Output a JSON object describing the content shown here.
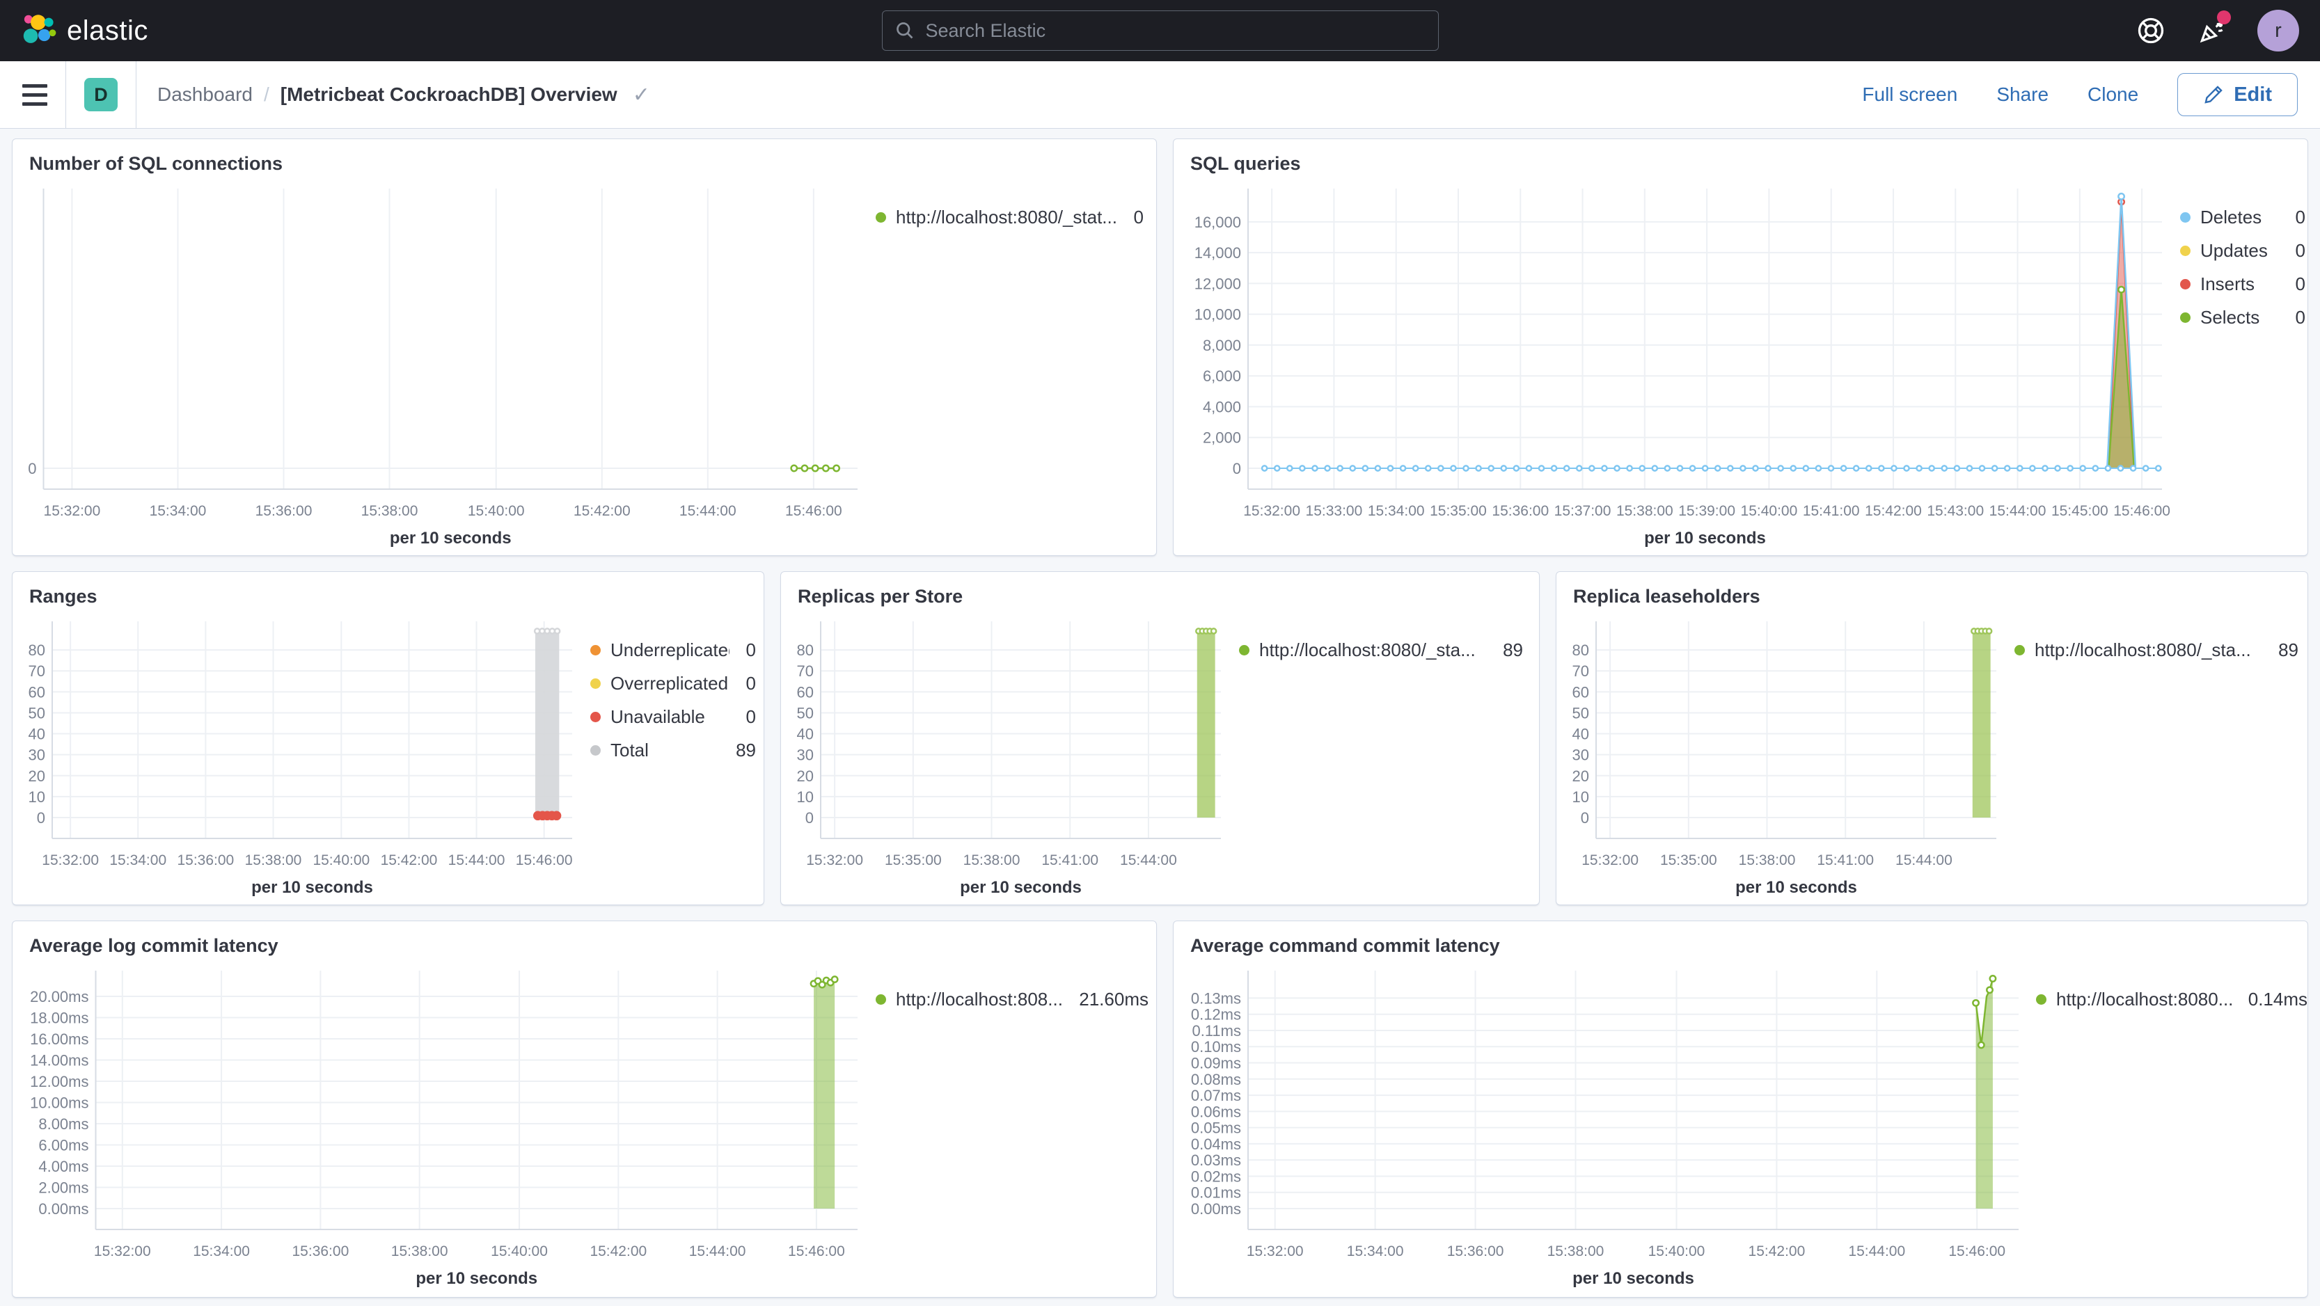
{
  "header": {
    "logo_text": "elastic",
    "search_placeholder": "Search Elastic",
    "avatar_initial": "r",
    "icons": {
      "search": "magnifier-search-icon",
      "help": "life-ring-help-icon",
      "news": "party-popper-news-icon",
      "notification_badge_color": "#e0366d"
    }
  },
  "toolbar": {
    "dashboard_badge": "D",
    "breadcrumb": {
      "root": "Dashboard",
      "separator": "/",
      "current": "[Metricbeat CockroachDB] Overview"
    },
    "actions": {
      "full_screen": "Full screen",
      "share": "Share",
      "clone": "Clone",
      "edit": "Edit"
    }
  },
  "colors": {
    "header_bg": "#1d1e24",
    "page_bg": "#f5f7fa",
    "panel_border": "#d3dae6",
    "accent_blue": "#2f6db4",
    "badge_teal": "#4dc3b2",
    "series_green": "#7eb631",
    "series_blue": "#7fc6f1",
    "series_yellow": "#f0d24c",
    "series_red": "#e2574c",
    "series_orange": "#ef9234",
    "series_gray": "#c6c8cb"
  },
  "chart_data": [
    {
      "title": "Number of SQL connections",
      "type": "line",
      "xlabel": "per 10 seconds",
      "ymax": 30,
      "y_ticks": [
        {
          "v": 0,
          "label": "0"
        }
      ],
      "x_grid": [
        0.035,
        0.165,
        0.295,
        0.425,
        0.556,
        0.686,
        0.816,
        0.946
      ],
      "x_ticks": [
        {
          "f": 0.035,
          "label": "15:32:00"
        },
        {
          "f": 0.165,
          "label": "15:34:00"
        },
        {
          "f": 0.295,
          "label": "15:36:00"
        },
        {
          "f": 0.425,
          "label": "15:38:00"
        },
        {
          "f": 0.556,
          "label": "15:40:00"
        },
        {
          "f": 0.686,
          "label": "15:42:00"
        },
        {
          "f": 0.816,
          "label": "15:44:00"
        },
        {
          "f": 0.946,
          "label": "15:46:00"
        }
      ],
      "series": [
        {
          "kind": "line",
          "color": "#7eb631",
          "points": [
            [
              0.922,
              0
            ],
            [
              0.935,
              0
            ],
            [
              0.948,
              0
            ],
            [
              0.961,
              0
            ],
            [
              0.974,
              0
            ]
          ],
          "marker_at": [
            0,
            1,
            2,
            3,
            4
          ]
        }
      ],
      "legend": [
        {
          "color": "#7eb631",
          "label": "http://localhost:8080/_stat...",
          "value": "0"
        }
      ]
    },
    {
      "title": "SQL queries",
      "type": "area",
      "xlabel": "per 10 seconds",
      "ymax": 17800,
      "y_ticks": [
        {
          "v": 0,
          "label": "0"
        },
        {
          "v": 2000,
          "label": "2,000"
        },
        {
          "v": 4000,
          "label": "4,000"
        },
        {
          "v": 6000,
          "label": "6,000"
        },
        {
          "v": 8000,
          "label": "8,000"
        },
        {
          "v": 10000,
          "label": "10,000"
        },
        {
          "v": 12000,
          "label": "12,000"
        },
        {
          "v": 14000,
          "label": "14,000"
        },
        {
          "v": 16000,
          "label": "16,000"
        }
      ],
      "x_grid": [
        0.026,
        0.094,
        0.162,
        0.23,
        0.298,
        0.366,
        0.434,
        0.502,
        0.57,
        0.638,
        0.706,
        0.774,
        0.842,
        0.91,
        0.978
      ],
      "x_ticks": [
        {
          "f": 0.026,
          "label": "15:32:00"
        },
        {
          "f": 0.094,
          "label": "15:33:00"
        },
        {
          "f": 0.162,
          "label": "15:34:00"
        },
        {
          "f": 0.23,
          "label": "15:35:00"
        },
        {
          "f": 0.298,
          "label": "15:36:00"
        },
        {
          "f": 0.366,
          "label": "15:37:00"
        },
        {
          "f": 0.434,
          "label": "15:38:00"
        },
        {
          "f": 0.502,
          "label": "15:39:00"
        },
        {
          "f": 0.57,
          "label": "15:40:00"
        },
        {
          "f": 0.638,
          "label": "15:41:00"
        },
        {
          "f": 0.706,
          "label": "15:42:00"
        },
        {
          "f": 0.774,
          "label": "15:43:00"
        },
        {
          "f": 0.842,
          "label": "15:44:00"
        },
        {
          "f": 0.91,
          "label": "15:45:00"
        },
        {
          "f": 0.978,
          "label": "15:46:00"
        }
      ],
      "series": [
        {
          "kind": "area",
          "color": "#e2574c",
          "points": [
            [
              0.941,
              0
            ],
            [
              0.9555,
              17300
            ],
            [
              0.97,
              0
            ]
          ],
          "marker_at": [
            1
          ]
        },
        {
          "kind": "area",
          "color": "#7eb631",
          "points": [
            [
              0.9415,
              0
            ],
            [
              0.9555,
              11600
            ],
            [
              0.9695,
              0
            ]
          ],
          "marker_at": [
            1
          ]
        },
        {
          "kind": "line",
          "color": "#7fc6f1",
          "points": [
            [
              0.94,
              0
            ],
            [
              0.9555,
              17650
            ],
            [
              0.971,
              0
            ]
          ],
          "marker_at": [
            1
          ]
        },
        {
          "kind": "dotline",
          "color": "#7fc6f1",
          "y": 0,
          "x0": 0.018,
          "x1": 0.996,
          "markers": 72
        }
      ],
      "legend": [
        {
          "color": "#7fc6f1",
          "label": "Deletes",
          "value": "0"
        },
        {
          "color": "#f0d24c",
          "label": "Updates",
          "value": "0"
        },
        {
          "color": "#e2574c",
          "label": "Inserts",
          "value": "0"
        },
        {
          "color": "#7eb631",
          "label": "Selects",
          "value": "0"
        }
      ]
    },
    {
      "title": "Ranges",
      "type": "bar",
      "xlabel": "per 10 seconds",
      "ymax": 91,
      "y_ticks": [
        {
          "v": 0,
          "label": "0"
        },
        {
          "v": 10,
          "label": "10"
        },
        {
          "v": 20,
          "label": "20"
        },
        {
          "v": 30,
          "label": "30"
        },
        {
          "v": 40,
          "label": "40"
        },
        {
          "v": 50,
          "label": "50"
        },
        {
          "v": 60,
          "label": "60"
        },
        {
          "v": 70,
          "label": "70"
        },
        {
          "v": 80,
          "label": "80"
        }
      ],
      "x_grid": [
        0.035,
        0.165,
        0.295,
        0.425,
        0.556,
        0.686,
        0.816,
        0.946
      ],
      "x_ticks": [
        {
          "f": 0.035,
          "label": "15:32:00"
        },
        {
          "f": 0.165,
          "label": "15:34:00"
        },
        {
          "f": 0.295,
          "label": "15:36:00"
        },
        {
          "f": 0.425,
          "label": "15:38:00"
        },
        {
          "f": 0.556,
          "label": "15:40:00"
        },
        {
          "f": 0.686,
          "label": "15:42:00"
        },
        {
          "f": 0.816,
          "label": "15:44:00"
        },
        {
          "f": 0.946,
          "label": "15:46:00"
        }
      ],
      "series": [
        {
          "kind": "bar",
          "color": "#d4d6d9",
          "f": 0.952,
          "fw": 0.046,
          "v": 89,
          "top_markers": 5,
          "opacity": 0.9
        },
        {
          "kind": "markers",
          "color": "#e4564a",
          "r": 5.5,
          "points": [
            [
              0.934,
              0.9
            ],
            [
              0.943,
              0.9
            ],
            [
              0.952,
              0.9
            ],
            [
              0.961,
              0.9
            ],
            [
              0.97,
              0.9
            ]
          ]
        }
      ],
      "legend": [
        {
          "color": "#ef9234",
          "label": "Underreplicated",
          "value": "0"
        },
        {
          "color": "#f0d24c",
          "label": "Overreplicated",
          "value": "0"
        },
        {
          "color": "#e4564a",
          "label": "Unavailable",
          "value": "0"
        },
        {
          "color": "#c6c8cb",
          "label": "Total",
          "value": "89"
        }
      ]
    },
    {
      "title": "Replicas per Store",
      "type": "bar",
      "xlabel": "per 10 seconds",
      "ymax": 91,
      "y_ticks": [
        {
          "v": 0,
          "label": "0"
        },
        {
          "v": 10,
          "label": "10"
        },
        {
          "v": 20,
          "label": "20"
        },
        {
          "v": 30,
          "label": "30"
        },
        {
          "v": 40,
          "label": "40"
        },
        {
          "v": 50,
          "label": "50"
        },
        {
          "v": 60,
          "label": "60"
        },
        {
          "v": 70,
          "label": "70"
        },
        {
          "v": 80,
          "label": "80"
        }
      ],
      "x_grid": [
        0.035,
        0.231,
        0.427,
        0.623,
        0.819
      ],
      "x_ticks": [
        {
          "f": 0.035,
          "label": "15:32:00"
        },
        {
          "f": 0.231,
          "label": "15:35:00"
        },
        {
          "f": 0.427,
          "label": "15:38:00"
        },
        {
          "f": 0.623,
          "label": "15:41:00"
        },
        {
          "f": 0.819,
          "label": "15:44:00"
        }
      ],
      "series": [
        {
          "kind": "bar",
          "color": "#9fc65b",
          "f": 0.963,
          "fw": 0.045,
          "v": 89,
          "top_markers": 5,
          "opacity": 0.75
        }
      ],
      "legend": [
        {
          "color": "#7eb631",
          "label": "http://localhost:8080/_sta...",
          "value": "89"
        }
      ]
    },
    {
      "title": "Replica leaseholders",
      "type": "bar",
      "xlabel": "per 10 seconds",
      "ymax": 91,
      "y_ticks": [
        {
          "v": 0,
          "label": "0"
        },
        {
          "v": 10,
          "label": "10"
        },
        {
          "v": 20,
          "label": "20"
        },
        {
          "v": 30,
          "label": "30"
        },
        {
          "v": 40,
          "label": "40"
        },
        {
          "v": 50,
          "label": "50"
        },
        {
          "v": 60,
          "label": "60"
        },
        {
          "v": 70,
          "label": "70"
        },
        {
          "v": 80,
          "label": "80"
        }
      ],
      "x_grid": [
        0.035,
        0.231,
        0.427,
        0.623,
        0.819
      ],
      "x_ticks": [
        {
          "f": 0.035,
          "label": "15:32:00"
        },
        {
          "f": 0.231,
          "label": "15:35:00"
        },
        {
          "f": 0.427,
          "label": "15:38:00"
        },
        {
          "f": 0.623,
          "label": "15:41:00"
        },
        {
          "f": 0.819,
          "label": "15:44:00"
        }
      ],
      "series": [
        {
          "kind": "bar",
          "color": "#9fc65b",
          "f": 0.963,
          "fw": 0.045,
          "v": 89,
          "top_markers": 5,
          "opacity": 0.75
        }
      ],
      "legend": [
        {
          "color": "#7eb631",
          "label": "http://localhost:8080/_sta...",
          "value": "89"
        }
      ]
    },
    {
      "title": "Average log commit latency",
      "type": "area",
      "xlabel": "per 10 seconds",
      "ymax": 21.9,
      "y_ticks": [
        {
          "v": 0,
          "label": "0.00ms"
        },
        {
          "v": 2,
          "label": "2.00ms"
        },
        {
          "v": 4,
          "label": "4.00ms"
        },
        {
          "v": 6,
          "label": "6.00ms"
        },
        {
          "v": 8,
          "label": "8.00ms"
        },
        {
          "v": 10,
          "label": "10.00ms"
        },
        {
          "v": 12,
          "label": "12.00ms"
        },
        {
          "v": 14,
          "label": "14.00ms"
        },
        {
          "v": 16,
          "label": "16.00ms"
        },
        {
          "v": 18,
          "label": "18.00ms"
        },
        {
          "v": 20,
          "label": "20.00ms"
        }
      ],
      "x_grid": [
        0.035,
        0.165,
        0.295,
        0.425,
        0.556,
        0.686,
        0.816,
        0.946
      ],
      "x_ticks": [
        {
          "f": 0.035,
          "label": "15:32:00"
        },
        {
          "f": 0.165,
          "label": "15:34:00"
        },
        {
          "f": 0.295,
          "label": "15:36:00"
        },
        {
          "f": 0.425,
          "label": "15:38:00"
        },
        {
          "f": 0.556,
          "label": "15:40:00"
        },
        {
          "f": 0.686,
          "label": "15:42:00"
        },
        {
          "f": 0.816,
          "label": "15:44:00"
        },
        {
          "f": 0.946,
          "label": "15:46:00"
        }
      ],
      "series": [
        {
          "kind": "area",
          "color": "#7eb631",
          "points": [
            [
              0.9425,
              21.2
            ],
            [
              0.948,
              21.45
            ],
            [
              0.9535,
              21.1
            ],
            [
              0.959,
              21.5
            ],
            [
              0.9645,
              21.3
            ],
            [
              0.97,
              21.6
            ]
          ],
          "marker_at": [
            0,
            1,
            2,
            3,
            4,
            5
          ]
        }
      ],
      "legend": [
        {
          "color": "#7eb631",
          "label": "http://localhost:808...",
          "value": "21.60ms"
        }
      ]
    },
    {
      "title": "Average command commit latency",
      "type": "area",
      "xlabel": "per 10 seconds",
      "ymax": 0.1435,
      "y_ticks": [
        {
          "v": 0,
          "label": "0.00ms"
        },
        {
          "v": 0.01,
          "label": "0.01ms"
        },
        {
          "v": 0.02,
          "label": "0.02ms"
        },
        {
          "v": 0.03,
          "label": "0.03ms"
        },
        {
          "v": 0.04,
          "label": "0.04ms"
        },
        {
          "v": 0.05,
          "label": "0.05ms"
        },
        {
          "v": 0.06,
          "label": "0.06ms"
        },
        {
          "v": 0.07,
          "label": "0.07ms"
        },
        {
          "v": 0.08,
          "label": "0.08ms"
        },
        {
          "v": 0.09,
          "label": "0.09ms"
        },
        {
          "v": 0.1,
          "label": "0.10ms"
        },
        {
          "v": 0.11,
          "label": "0.11ms"
        },
        {
          "v": 0.12,
          "label": "0.12ms"
        },
        {
          "v": 0.13,
          "label": "0.13ms"
        }
      ],
      "x_grid": [
        0.035,
        0.165,
        0.295,
        0.425,
        0.556,
        0.686,
        0.816,
        0.946
      ],
      "x_ticks": [
        {
          "f": 0.035,
          "label": "15:32:00"
        },
        {
          "f": 0.165,
          "label": "15:34:00"
        },
        {
          "f": 0.295,
          "label": "15:36:00"
        },
        {
          "f": 0.425,
          "label": "15:38:00"
        },
        {
          "f": 0.556,
          "label": "15:40:00"
        },
        {
          "f": 0.686,
          "label": "15:42:00"
        },
        {
          "f": 0.816,
          "label": "15:44:00"
        },
        {
          "f": 0.946,
          "label": "15:46:00"
        }
      ],
      "series": [
        {
          "kind": "area",
          "color": "#7eb631",
          "points": [
            [
              0.9445,
              0.127
            ],
            [
              0.9515,
              0.101
            ],
            [
              0.9585,
              0.131
            ],
            [
              0.9625,
              0.135
            ],
            [
              0.9665,
              0.142
            ]
          ],
          "marker_at": [
            0,
            1,
            3,
            4
          ]
        }
      ],
      "legend": [
        {
          "color": "#7eb631",
          "label": "http://localhost:8080...",
          "value": "0.14ms"
        }
      ]
    }
  ]
}
